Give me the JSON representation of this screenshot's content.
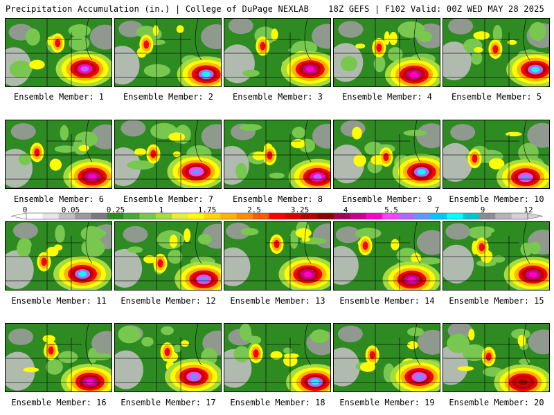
{
  "header": {
    "left": "Precipitation Accumulation (in.) | College of DuPage NEXLAB",
    "right": "18Z GEFS | F102 Valid: 00Z WED MAY 28 2025"
  },
  "chart_data": {
    "type": "heatmap",
    "title": "Precipitation Accumulation (in.)",
    "units": "in.",
    "panels": [
      {
        "label": "Ensemble Member: 1",
        "max_intensity": "purple",
        "max_value_range": [
          5.5,
          7
        ]
      },
      {
        "label": "Ensemble Member: 2",
        "max_intensity": "cyan",
        "max_value_range": [
          7,
          9
        ]
      },
      {
        "label": "Ensemble Member: 3",
        "max_intensity": "magenta",
        "max_value_range": [
          4,
          5.5
        ]
      },
      {
        "label": "Ensemble Member: 4",
        "max_intensity": "magenta",
        "max_value_range": [
          4,
          5.5
        ]
      },
      {
        "label": "Ensemble Member: 5",
        "max_intensity": "cyan",
        "max_value_range": [
          7,
          9
        ]
      },
      {
        "label": "Ensemble Member: 6",
        "max_intensity": "magenta",
        "max_value_range": [
          4,
          5.5
        ]
      },
      {
        "label": "Ensemble Member: 7",
        "max_intensity": "blue",
        "max_value_range": [
          5.5,
          7
        ]
      },
      {
        "label": "Ensemble Member: 8",
        "max_intensity": "purple",
        "max_value_range": [
          4,
          5.5
        ]
      },
      {
        "label": "Ensemble Member: 9",
        "max_intensity": "cyan",
        "max_value_range": [
          7,
          9
        ]
      },
      {
        "label": "Ensemble Member: 10",
        "max_intensity": "blue",
        "max_value_range": [
          5.5,
          7
        ]
      },
      {
        "label": "Ensemble Member: 11",
        "max_intensity": "cyan",
        "max_value_range": [
          7,
          9
        ]
      },
      {
        "label": "Ensemble Member: 12",
        "max_intensity": "blue",
        "max_value_range": [
          5.5,
          7
        ]
      },
      {
        "label": "Ensemble Member: 13",
        "max_intensity": "magenta",
        "max_value_range": [
          4,
          5.5
        ]
      },
      {
        "label": "Ensemble Member: 14",
        "max_intensity": "magenta",
        "max_value_range": [
          4,
          5.5
        ]
      },
      {
        "label": "Ensemble Member: 15",
        "max_intensity": "magenta",
        "max_value_range": [
          4,
          5.5
        ]
      },
      {
        "label": "Ensemble Member: 16",
        "max_intensity": "magenta",
        "max_value_range": [
          4,
          5.5
        ]
      },
      {
        "label": "Ensemble Member: 17",
        "max_intensity": "blue",
        "max_value_range": [
          5.5,
          7
        ]
      },
      {
        "label": "Ensemble Member: 18",
        "max_intensity": "cyan",
        "max_value_range": [
          7,
          9
        ]
      },
      {
        "label": "Ensemble Member: 19",
        "max_intensity": "blue",
        "max_value_range": [
          5.5,
          7
        ]
      },
      {
        "label": "Ensemble Member: 20",
        "max_intensity": "red",
        "max_value_range": [
          3.25,
          4
        ]
      }
    ],
    "colorbar": {
      "tick_labels": [
        "0",
        "0.05",
        "0.25",
        "1",
        "1.75",
        "2.5",
        "3.25",
        "4",
        "5.5",
        "7",
        "9",
        "12"
      ],
      "tick_values": [
        0,
        0.05,
        0.25,
        1,
        1.75,
        2.5,
        3.25,
        4,
        5.5,
        7,
        9,
        12
      ],
      "colors": [
        "#ffffff",
        "#e6e6e6",
        "#bfbfbf",
        "#9a9a9a",
        "#7a7a7a",
        "#2e8b22",
        "#4aa63a",
        "#78c850",
        "#a8dc3c",
        "#e6f03c",
        "#ffff00",
        "#ffd700",
        "#ffb400",
        "#ff8c00",
        "#ff5a00",
        "#ff0000",
        "#dc0000",
        "#b40000",
        "#8c0000",
        "#a0005a",
        "#c8008c",
        "#ff00c8",
        "#ff40ff",
        "#b464ff",
        "#6496ff",
        "#00c8ff",
        "#00ffff",
        "#00c8c8",
        "#8c8c8c",
        "#b4b4b4",
        "#d2d2d2"
      ]
    }
  }
}
